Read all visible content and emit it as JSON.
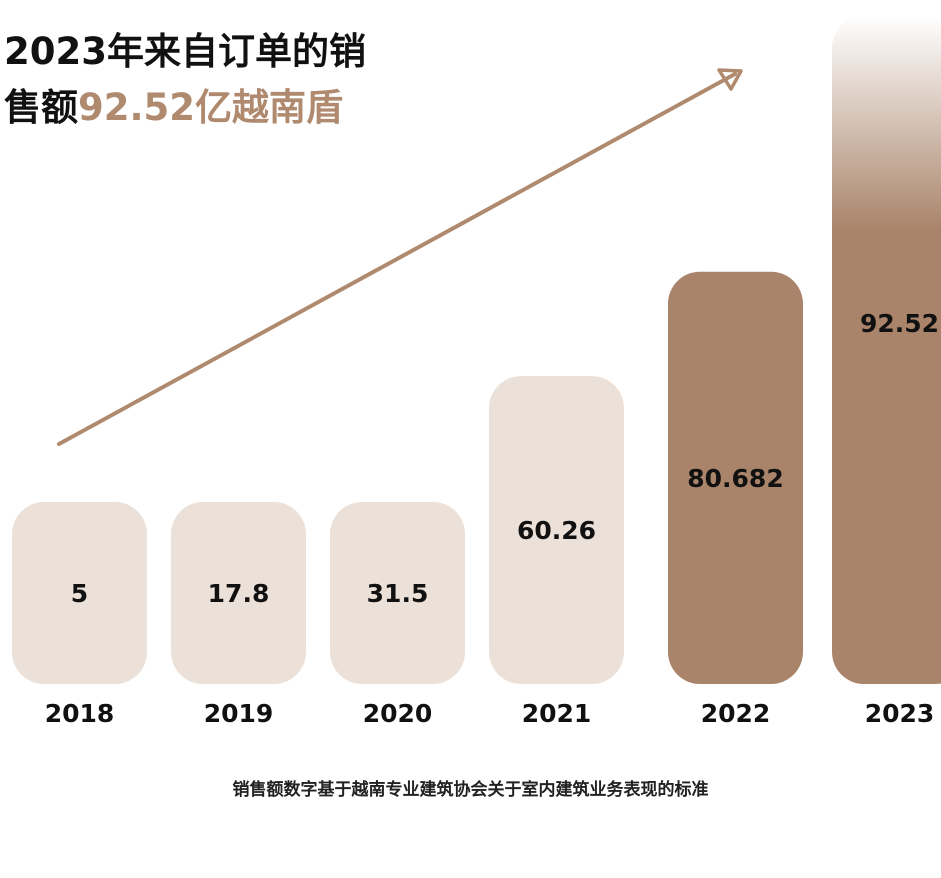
{
  "chart_data": {
    "type": "bar",
    "title_line1": "2023年来自订单的销",
    "title_line2_prefix": "售额",
    "title_line2_highlight": "92.52亿越南盾",
    "categories": [
      "2018",
      "2019",
      "2020",
      "2021",
      "2022",
      "2023"
    ],
    "values": [
      5,
      17.8,
      31.5,
      60.26,
      80.682,
      92.52
    ],
    "value_labels": [
      "5",
      "17.8",
      "31.5",
      "60.26",
      "80.682",
      "92.52"
    ],
    "highlighted": [
      false,
      false,
      false,
      false,
      true,
      true
    ],
    "trend_arrow": true,
    "footnote": "销售额数字基于越南专业建筑协会关于室内建筑业务表现的标准"
  },
  "colors": {
    "light_bar": "#ece1d8",
    "dark_bar": "#a9846a",
    "accent_text": "#b08a6e",
    "arrow": "#b08a6e"
  }
}
